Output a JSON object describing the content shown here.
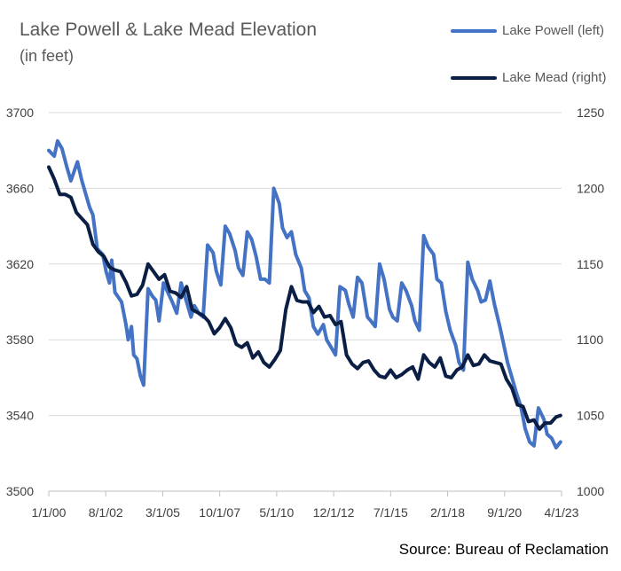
{
  "title": "Lake Powell & Lake Mead Elevation",
  "subtitle": "(in feet)",
  "source": "Source: Bureau of Reclamation",
  "colors": {
    "powell": "#4472C4",
    "mead": "#0B1F45",
    "grid": "#d9d9d9",
    "axis": "#bfbfbf"
  },
  "legend": {
    "powell": "Lake Powell (left)",
    "mead": "Lake Mead (right)"
  },
  "chart_data": {
    "type": "line",
    "title": "Lake Powell & Lake Mead Elevation",
    "subtitle": "(in feet)",
    "x_ticks": [
      "1/1/00",
      "8/1/02",
      "3/1/05",
      "10/1/07",
      "5/1/10",
      "12/1/12",
      "7/1/15",
      "2/1/18",
      "9/1/20",
      "4/1/23"
    ],
    "x_range": [
      2000.0,
      2023.25
    ],
    "y_left_range": [
      3500,
      3700
    ],
    "y_left_ticks": [
      "3500",
      "3540",
      "3580",
      "3620",
      "3660",
      "3700"
    ],
    "y_right_range": [
      1000,
      1250
    ],
    "y_right_ticks": [
      "1000",
      "1050",
      "1100",
      "1150",
      "1200",
      "1250"
    ],
    "grid": "horizontal",
    "legend_position": "top-right",
    "series": [
      {
        "name": "Lake Powell (left)",
        "axis": "left",
        "x": [
          2000.0,
          2000.25,
          2000.4,
          2000.6,
          2000.8,
          2001.0,
          2001.3,
          2001.5,
          2001.6,
          2001.85,
          2002.0,
          2002.2,
          2002.45,
          2002.6,
          2002.75,
          2002.85,
          2003.0,
          2003.3,
          2003.5,
          2003.6,
          2003.75,
          2003.85,
          2004.0,
          2004.15,
          2004.3,
          2004.5,
          2004.7,
          2004.85,
          2005.0,
          2005.2,
          2005.4,
          2005.6,
          2005.8,
          2006.0,
          2006.2,
          2006.45,
          2006.6,
          2006.8,
          2007.0,
          2007.2,
          2007.45,
          2007.6,
          2007.8,
          2008.0,
          2008.2,
          2008.45,
          2008.6,
          2008.8,
          2009.0,
          2009.2,
          2009.4,
          2009.6,
          2009.8,
          2010.0,
          2010.2,
          2010.45,
          2010.6,
          2010.8,
          2011.0,
          2011.2,
          2011.45,
          2011.6,
          2011.8,
          2012.0,
          2012.2,
          2012.45,
          2012.6,
          2012.8,
          2013.0,
          2013.2,
          2013.45,
          2013.6,
          2013.8,
          2014.0,
          2014.2,
          2014.45,
          2014.6,
          2014.8,
          2015.0,
          2015.2,
          2015.45,
          2015.6,
          2015.8,
          2016.0,
          2016.2,
          2016.45,
          2016.6,
          2016.8,
          2017.0,
          2017.2,
          2017.45,
          2017.6,
          2017.8,
          2018.0,
          2018.2,
          2018.45,
          2018.6,
          2018.8,
          2019.0,
          2019.2,
          2019.45,
          2019.6,
          2019.8,
          2020.0,
          2020.2,
          2020.45,
          2020.6,
          2020.8,
          2021.0,
          2021.2,
          2021.4,
          2021.6,
          2021.8,
          2022.0,
          2022.2,
          2022.45,
          2022.6,
          2022.8,
          2023.0,
          2023.2
        ],
        "values": [
          3680,
          3677,
          3685,
          3681,
          3672,
          3664,
          3674,
          3664,
          3660,
          3650,
          3646,
          3628,
          3625,
          3616,
          3610,
          3622,
          3605,
          3600,
          3588,
          3580,
          3587,
          3572,
          3570,
          3561,
          3556,
          3607,
          3603,
          3601,
          3590,
          3610,
          3605,
          3600,
          3594,
          3610,
          3602,
          3592,
          3598,
          3594,
          3592,
          3630,
          3626,
          3616,
          3609,
          3640,
          3636,
          3627,
          3618,
          3614,
          3637,
          3633,
          3624,
          3612,
          3612,
          3610,
          3660,
          3652,
          3639,
          3634,
          3637,
          3625,
          3618,
          3606,
          3602,
          3587,
          3583,
          3588,
          3580,
          3576,
          3572,
          3608,
          3606,
          3599,
          3592,
          3613,
          3610,
          3592,
          3590,
          3587,
          3620,
          3612,
          3596,
          3592,
          3590,
          3610,
          3606,
          3598,
          3590,
          3585,
          3635,
          3629,
          3625,
          3612,
          3610,
          3595,
          3585,
          3577,
          3568,
          3564,
          3621,
          3612,
          3606,
          3600,
          3601,
          3611,
          3599,
          3587,
          3579,
          3568,
          3560,
          3552,
          3545,
          3533,
          3526,
          3524,
          3544,
          3538,
          3530,
          3528,
          3523,
          3526
        ]
      },
      {
        "name": "Lake Mead (right)",
        "axis": "right",
        "x": [
          2000.0,
          2000.25,
          2000.5,
          2000.75,
          2001.0,
          2001.25,
          2001.5,
          2001.75,
          2002.0,
          2002.25,
          2002.5,
          2002.75,
          2003.0,
          2003.25,
          2003.5,
          2003.75,
          2004.0,
          2004.25,
          2004.5,
          2004.75,
          2005.0,
          2005.25,
          2005.5,
          2005.75,
          2006.0,
          2006.25,
          2006.5,
          2006.75,
          2007.0,
          2007.25,
          2007.5,
          2007.75,
          2008.0,
          2008.25,
          2008.5,
          2008.75,
          2009.0,
          2009.25,
          2009.5,
          2009.75,
          2010.0,
          2010.25,
          2010.5,
          2010.75,
          2011.0,
          2011.25,
          2011.5,
          2011.75,
          2012.0,
          2012.25,
          2012.5,
          2012.75,
          2013.0,
          2013.25,
          2013.5,
          2013.75,
          2014.0,
          2014.25,
          2014.5,
          2014.75,
          2015.0,
          2015.25,
          2015.5,
          2015.75,
          2016.0,
          2016.25,
          2016.5,
          2016.75,
          2017.0,
          2017.25,
          2017.5,
          2017.75,
          2018.0,
          2018.25,
          2018.5,
          2018.75,
          2019.0,
          2019.25,
          2019.5,
          2019.75,
          2020.0,
          2020.25,
          2020.5,
          2020.75,
          2021.0,
          2021.25,
          2021.5,
          2021.75,
          2022.0,
          2022.25,
          2022.5,
          2022.75,
          2023.0,
          2023.2
        ],
        "values": [
          1214,
          1206,
          1196,
          1196,
          1194,
          1184,
          1180,
          1176,
          1163,
          1158,
          1155,
          1148,
          1146,
          1145,
          1138,
          1129,
          1130,
          1136,
          1150,
          1145,
          1140,
          1143,
          1132,
          1131,
          1128,
          1135,
          1120,
          1118,
          1116,
          1112,
          1104,
          1108,
          1114,
          1108,
          1097,
          1095,
          1098,
          1088,
          1092,
          1085,
          1082,
          1087,
          1093,
          1120,
          1135,
          1126,
          1125,
          1125,
          1118,
          1122,
          1115,
          1116,
          1110,
          1112,
          1090,
          1084,
          1081,
          1085,
          1086,
          1080,
          1076,
          1075,
          1080,
          1075,
          1077,
          1080,
          1082,
          1074,
          1090,
          1085,
          1082,
          1088,
          1076,
          1075,
          1080,
          1082,
          1090,
          1083,
          1084,
          1090,
          1086,
          1085,
          1084,
          1074,
          1068,
          1057,
          1056,
          1046,
          1047,
          1041,
          1045,
          1045,
          1049,
          1050
        ]
      }
    ]
  }
}
